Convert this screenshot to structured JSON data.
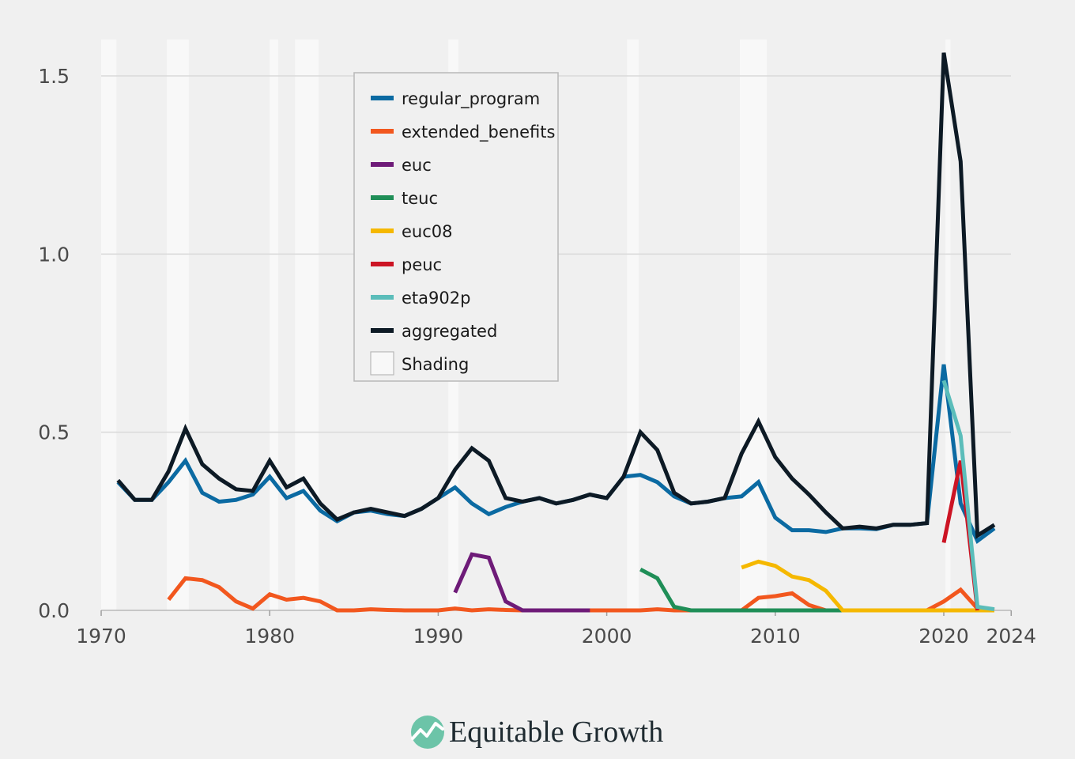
{
  "chart_data": {
    "type": "line",
    "title": "",
    "xlabel": "",
    "ylabel": "",
    "xlim": [
      1970,
      2024
    ],
    "ylim": [
      0,
      1.6
    ],
    "x_ticks": [
      1970,
      1980,
      1990,
      2000,
      2010,
      2020,
      2024
    ],
    "y_ticks": [
      0.0,
      0.5,
      1.0,
      1.5
    ],
    "x_tick_labels": [
      "1970",
      "1980",
      "1990",
      "2000",
      "2010",
      "2020",
      "2024"
    ],
    "y_tick_labels": [
      "0.0",
      "0.5",
      "1.0",
      "1.5"
    ],
    "grid": true,
    "legend_position": "top-center",
    "recession_shading": [
      [
        1970,
        1970.9
      ],
      [
        1973.9,
        1975.2
      ],
      [
        1980.0,
        1980.5
      ],
      [
        1981.5,
        1982.9
      ],
      [
        1990.6,
        1991.2
      ],
      [
        2001.2,
        2001.9
      ],
      [
        2007.9,
        2009.5
      ],
      [
        2020.1,
        2020.4
      ]
    ],
    "shading_color": "#f8f8f8",
    "series": [
      {
        "name": "regular_program",
        "color": "#0b6aa2",
        "points": [
          [
            1971,
            0.36
          ],
          [
            1972,
            0.31
          ],
          [
            1973,
            0.31
          ],
          [
            1974,
            0.36
          ],
          [
            1975,
            0.42
          ],
          [
            1976,
            0.33
          ],
          [
            1977,
            0.305
          ],
          [
            1978,
            0.31
          ],
          [
            1979,
            0.325
          ],
          [
            1980,
            0.375
          ],
          [
            1981,
            0.315
          ],
          [
            1982,
            0.335
          ],
          [
            1983,
            0.28
          ],
          [
            1984,
            0.25
          ],
          [
            1985,
            0.275
          ],
          [
            1986,
            0.28
          ],
          [
            1987,
            0.27
          ],
          [
            1988,
            0.265
          ],
          [
            1989,
            0.285
          ],
          [
            1990,
            0.315
          ],
          [
            1991,
            0.345
          ],
          [
            1992,
            0.3
          ],
          [
            1993,
            0.27
          ],
          [
            1994,
            0.29
          ],
          [
            1995,
            0.305
          ],
          [
            1996,
            0.315
          ],
          [
            1997,
            0.3
          ],
          [
            1998,
            0.31
          ],
          [
            1999,
            0.325
          ],
          [
            2000,
            0.315
          ],
          [
            2001,
            0.375
          ],
          [
            2002,
            0.38
          ],
          [
            2003,
            0.36
          ],
          [
            2004,
            0.32
          ],
          [
            2005,
            0.3
          ],
          [
            2006,
            0.305
          ],
          [
            2007,
            0.315
          ],
          [
            2008,
            0.32
          ],
          [
            2009,
            0.36
          ],
          [
            2010,
            0.26
          ],
          [
            2011,
            0.225
          ],
          [
            2012,
            0.225
          ],
          [
            2013,
            0.22
          ],
          [
            2014,
            0.23
          ],
          [
            2015,
            0.23
          ],
          [
            2016,
            0.228
          ],
          [
            2017,
            0.24
          ],
          [
            2018,
            0.24
          ],
          [
            2019,
            0.245
          ],
          [
            2020,
            0.69
          ],
          [
            2021,
            0.3
          ],
          [
            2022,
            0.195
          ],
          [
            2023,
            0.23
          ]
        ]
      },
      {
        "name": "extended_benefits",
        "color": "#f2571e",
        "points": [
          [
            1974,
            0.03
          ],
          [
            1975,
            0.09
          ],
          [
            1976,
            0.085
          ],
          [
            1977,
            0.065
          ],
          [
            1978,
            0.025
          ],
          [
            1979,
            0.005
          ],
          [
            1980,
            0.045
          ],
          [
            1981,
            0.03
          ],
          [
            1982,
            0.035
          ],
          [
            1983,
            0.025
          ],
          [
            1984,
            0.0
          ],
          [
            1985,
            0.0
          ],
          [
            1986,
            0.003
          ],
          [
            1987,
            0.001
          ],
          [
            1988,
            0.0
          ],
          [
            1989,
            0.0
          ],
          [
            1990,
            0.0
          ],
          [
            1991,
            0.005
          ],
          [
            1992,
            0.0
          ],
          [
            1993,
            0.003
          ],
          [
            1994,
            0.001
          ],
          [
            1995,
            0.0
          ],
          [
            1996,
            0.0
          ],
          [
            1997,
            0.0
          ],
          [
            1998,
            0.0
          ],
          [
            1999,
            0.0
          ],
          [
            2000,
            0.0
          ],
          [
            2001,
            0.0
          ],
          [
            2002,
            0.0
          ],
          [
            2003,
            0.003
          ],
          [
            2004,
            0.0
          ],
          [
            2005,
            0.0
          ],
          [
            2006,
            0.0
          ],
          [
            2007,
            0.0
          ],
          [
            2008,
            0.0
          ],
          [
            2009,
            0.035
          ],
          [
            2010,
            0.04
          ],
          [
            2011,
            0.048
          ],
          [
            2012,
            0.015
          ],
          [
            2013,
            0.0
          ],
          [
            2014,
            0.0
          ],
          [
            2015,
            0.0
          ],
          [
            2016,
            0.0
          ],
          [
            2017,
            0.0
          ],
          [
            2018,
            0.0
          ],
          [
            2019,
            0.0
          ],
          [
            2020,
            0.025
          ],
          [
            2021,
            0.058
          ],
          [
            2022,
            0.005
          ],
          [
            2023,
            0.0
          ]
        ]
      },
      {
        "name": "euc",
        "color": "#6e1b78",
        "points": [
          [
            1991,
            0.05
          ],
          [
            1992,
            0.157
          ],
          [
            1993,
            0.148
          ],
          [
            1994,
            0.025
          ],
          [
            1995,
            0.0
          ],
          [
            1996,
            0.0
          ],
          [
            1997,
            0.0
          ],
          [
            1998,
            0.0
          ],
          [
            1999,
            0.0
          ]
        ]
      },
      {
        "name": "teuc",
        "color": "#1f8e57",
        "points": [
          [
            2002,
            0.115
          ],
          [
            2003,
            0.09
          ],
          [
            2004,
            0.01
          ],
          [
            2005,
            0.0
          ],
          [
            2006,
            0.0
          ],
          [
            2007,
            0.0
          ],
          [
            2008,
            0.0
          ],
          [
            2009,
            0.0
          ],
          [
            2010,
            0.0
          ],
          [
            2011,
            0.0
          ],
          [
            2012,
            0.0
          ],
          [
            2013,
            0.0
          ],
          [
            2014,
            0.0
          ]
        ]
      },
      {
        "name": "euc08",
        "color": "#f5b800",
        "points": [
          [
            2008,
            0.12
          ],
          [
            2009,
            0.137
          ],
          [
            2010,
            0.125
          ],
          [
            2011,
            0.095
          ],
          [
            2012,
            0.085
          ],
          [
            2013,
            0.055
          ],
          [
            2014,
            0.0
          ],
          [
            2015,
            0.0
          ],
          [
            2016,
            0.0
          ],
          [
            2017,
            0.0
          ],
          [
            2018,
            0.0
          ],
          [
            2019,
            0.0
          ],
          [
            2020,
            0.0
          ],
          [
            2021,
            0.0
          ],
          [
            2022,
            0.0
          ],
          [
            2023,
            0.0
          ]
        ]
      },
      {
        "name": "peuc",
        "color": "#cc1424",
        "points": [
          [
            2020,
            0.19
          ],
          [
            2021,
            0.42
          ],
          [
            2022,
            0.0
          ]
        ]
      },
      {
        "name": "eta902p",
        "color": "#5bbdba",
        "points": [
          [
            2020,
            0.645
          ],
          [
            2021,
            0.49
          ],
          [
            2022,
            0.01
          ],
          [
            2023,
            0.003
          ]
        ]
      },
      {
        "name": "aggregated",
        "color": "#0d1a25",
        "points": [
          [
            1971,
            0.365
          ],
          [
            1972,
            0.31
          ],
          [
            1973,
            0.31
          ],
          [
            1974,
            0.39
          ],
          [
            1975,
            0.51
          ],
          [
            1976,
            0.41
          ],
          [
            1977,
            0.37
          ],
          [
            1978,
            0.34
          ],
          [
            1979,
            0.335
          ],
          [
            1980,
            0.42
          ],
          [
            1981,
            0.345
          ],
          [
            1982,
            0.37
          ],
          [
            1983,
            0.3
          ],
          [
            1984,
            0.255
          ],
          [
            1985,
            0.275
          ],
          [
            1986,
            0.285
          ],
          [
            1987,
            0.275
          ],
          [
            1988,
            0.265
          ],
          [
            1989,
            0.285
          ],
          [
            1990,
            0.315
          ],
          [
            1991,
            0.395
          ],
          [
            1992,
            0.455
          ],
          [
            1993,
            0.42
          ],
          [
            1994,
            0.315
          ],
          [
            1995,
            0.305
          ],
          [
            1996,
            0.315
          ],
          [
            1997,
            0.3
          ],
          [
            1998,
            0.31
          ],
          [
            1999,
            0.325
          ],
          [
            2000,
            0.315
          ],
          [
            2001,
            0.375
          ],
          [
            2002,
            0.5
          ],
          [
            2003,
            0.45
          ],
          [
            2004,
            0.33
          ],
          [
            2005,
            0.3
          ],
          [
            2006,
            0.305
          ],
          [
            2007,
            0.315
          ],
          [
            2008,
            0.44
          ],
          [
            2009,
            0.53
          ],
          [
            2010,
            0.43
          ],
          [
            2011,
            0.37
          ],
          [
            2012,
            0.325
          ],
          [
            2013,
            0.275
          ],
          [
            2014,
            0.23
          ],
          [
            2015,
            0.235
          ],
          [
            2016,
            0.23
          ],
          [
            2017,
            0.24
          ],
          [
            2018,
            0.24
          ],
          [
            2019,
            0.245
          ],
          [
            2020,
            1.565
          ],
          [
            2021,
            1.26
          ],
          [
            2022,
            0.21
          ],
          [
            2023,
            0.24
          ]
        ]
      }
    ],
    "legend": {
      "items": [
        {
          "label": "regular_program",
          "color": "#0b6aa2",
          "kind": "line"
        },
        {
          "label": "extended_benefits",
          "color": "#f2571e",
          "kind": "line"
        },
        {
          "label": "euc",
          "color": "#6e1b78",
          "kind": "line"
        },
        {
          "label": "teuc",
          "color": "#1f8e57",
          "kind": "line"
        },
        {
          "label": "euc08",
          "color": "#f5b800",
          "kind": "line"
        },
        {
          "label": "peuc",
          "color": "#cc1424",
          "kind": "line"
        },
        {
          "label": "eta902p",
          "color": "#5bbdba",
          "kind": "line"
        },
        {
          "label": "aggregated",
          "color": "#0d1a25",
          "kind": "line"
        },
        {
          "label": "Shading",
          "color": "#f8f8f8",
          "kind": "box"
        }
      ]
    }
  },
  "branding": {
    "name": "Equitable Growth",
    "logo_icon": "equitable-growth-logo-icon",
    "logo_color": "#6cc4a8"
  }
}
